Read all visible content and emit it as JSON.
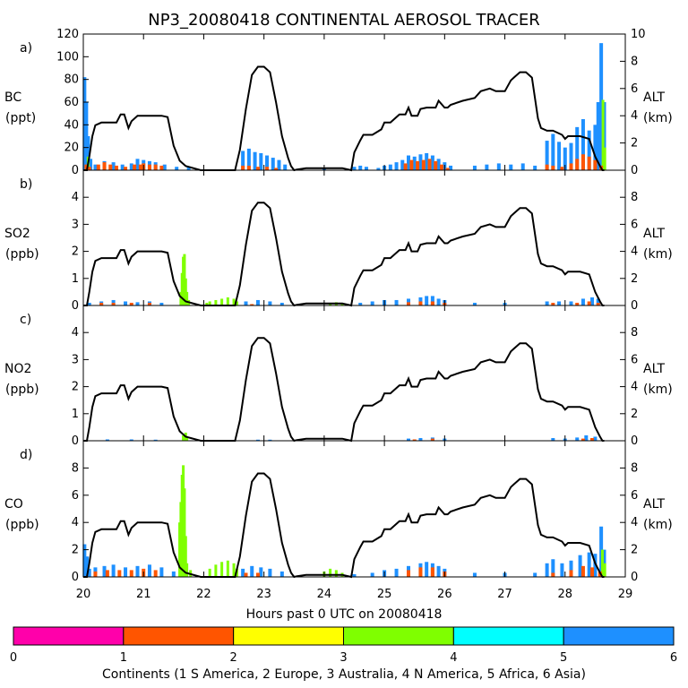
{
  "title": "NP3_20080418 CONTINENTAL AEROSOL TRACER",
  "xlabel": "Hours past 0 UTC on 20080418",
  "x_ticks": [
    "20",
    "21",
    "22",
    "23",
    "24",
    "25",
    "26",
    "27",
    "28",
    "29"
  ],
  "xlim": [
    20,
    29
  ],
  "colors": {
    "europe": "#ff5500",
    "australia": "#ffff00",
    "n_america": "#7fff00",
    "africa": "#00ffff",
    "asia": "#1e90ff",
    "s_america": "#ff00aa"
  },
  "alt_axis": {
    "label": "ALT",
    "unit": "(km)",
    "range": [
      0,
      10
    ]
  },
  "colorbar": {
    "label": "Continents (1 S America, 2 Europe, 3 Australia, 4 N America, 5 Africa, 6 Asia)",
    "ticks": [
      "0",
      "1",
      "2",
      "3",
      "4",
      "5",
      "6"
    ],
    "segments": [
      "#ff00aa",
      "#ff5500",
      "#ffff00",
      "#7fff00",
      "#00ffff",
      "#1e90ff"
    ]
  },
  "altitude": {
    "t": [
      20.0,
      20.06,
      20.1,
      20.15,
      20.2,
      20.3,
      20.55,
      20.62,
      20.68,
      20.75,
      20.8,
      20.9,
      21.3,
      21.4,
      21.5,
      21.6,
      21.7,
      21.95,
      22.52,
      22.6,
      22.7,
      22.8,
      22.9,
      23.0,
      23.1,
      23.2,
      23.3,
      23.4,
      23.45,
      23.5,
      23.55,
      23.7,
      24.0,
      24.3,
      24.45,
      24.5,
      24.6,
      24.65,
      24.8,
      24.95,
      25.0,
      25.1,
      25.25,
      25.35,
      25.4,
      25.45,
      25.55,
      25.6,
      25.7,
      25.85,
      25.9,
      26.0,
      26.05,
      26.1,
      26.3,
      26.5,
      26.6,
      26.75,
      26.85,
      27.0,
      27.1,
      27.15,
      27.25,
      27.35,
      27.45,
      27.55,
      27.6,
      27.7,
      27.8,
      27.95,
      28.0,
      28.05,
      28.15,
      28.25,
      28.4,
      28.5,
      28.58,
      28.62,
      28.65
    ],
    "alt": [
      0.0,
      0.0,
      1.0,
      2.5,
      3.3,
      3.5,
      3.5,
      4.1,
      4.1,
      3.1,
      3.6,
      4.0,
      4.0,
      3.9,
      1.8,
      0.7,
      0.3,
      0.0,
      0.0,
      1.5,
      4.5,
      7.0,
      7.6,
      7.6,
      7.2,
      5.0,
      2.5,
      0.9,
      0.3,
      0.0,
      0.05,
      0.15,
      0.15,
      0.15,
      0.0,
      1.3,
      2.2,
      2.6,
      2.6,
      3.0,
      3.5,
      3.5,
      4.1,
      4.1,
      4.6,
      4.0,
      4.0,
      4.5,
      4.6,
      4.6,
      5.1,
      4.6,
      4.6,
      4.8,
      5.1,
      5.3,
      5.8,
      6.0,
      5.8,
      5.8,
      6.6,
      6.8,
      7.2,
      7.2,
      6.8,
      3.8,
      3.1,
      2.9,
      2.9,
      2.6,
      2.3,
      2.5,
      2.5,
      2.5,
      2.3,
      1.0,
      0.3,
      0.0,
      0.0
    ]
  },
  "panels": [
    {
      "letter": "a)",
      "species": "BC",
      "unit": "(ppt)",
      "y_ticks": [
        "0",
        "20",
        "40",
        "60",
        "80",
        "100",
        "120"
      ],
      "ymax": 120,
      "alt_ticks": [
        "0",
        "2",
        "4",
        "6",
        "8",
        "10"
      ],
      "orange": [
        [
          20.05,
          5
        ],
        [
          20.1,
          3
        ],
        [
          20.25,
          5
        ],
        [
          20.35,
          7
        ],
        [
          20.45,
          5
        ],
        [
          20.55,
          4
        ],
        [
          20.7,
          3
        ],
        [
          20.85,
          5
        ],
        [
          20.95,
          5
        ],
        [
          21.0,
          6
        ],
        [
          21.1,
          5
        ],
        [
          21.2,
          5
        ],
        [
          21.3,
          4
        ],
        [
          22.65,
          4
        ],
        [
          22.75,
          4
        ],
        [
          22.9,
          3
        ],
        [
          23.05,
          3
        ],
        [
          23.2,
          2
        ],
        [
          25.35,
          6
        ],
        [
          25.45,
          9
        ],
        [
          25.55,
          8
        ],
        [
          25.65,
          9
        ],
        [
          25.75,
          10
        ],
        [
          25.85,
          8
        ],
        [
          25.95,
          5
        ],
        [
          26.05,
          2
        ],
        [
          27.7,
          5
        ],
        [
          27.8,
          4
        ],
        [
          27.95,
          3
        ],
        [
          28.1,
          6
        ],
        [
          28.2,
          10
        ],
        [
          28.3,
          14
        ],
        [
          28.4,
          12
        ],
        [
          28.5,
          9
        ],
        [
          28.6,
          4
        ]
      ],
      "asia": [
        [
          20.02,
          82
        ],
        [
          20.05,
          60
        ],
        [
          20.08,
          30
        ],
        [
          20.12,
          10
        ],
        [
          20.2,
          5
        ],
        [
          20.35,
          8
        ],
        [
          20.5,
          7
        ],
        [
          20.65,
          5
        ],
        [
          20.8,
          6
        ],
        [
          20.9,
          10
        ],
        [
          21.0,
          9
        ],
        [
          21.1,
          8
        ],
        [
          21.2,
          7
        ],
        [
          21.35,
          5
        ],
        [
          21.55,
          3
        ],
        [
          21.75,
          3
        ],
        [
          22.65,
          17
        ],
        [
          22.75,
          19
        ],
        [
          22.85,
          16
        ],
        [
          22.95,
          15
        ],
        [
          23.05,
          13
        ],
        [
          23.15,
          11
        ],
        [
          23.25,
          9
        ],
        [
          23.35,
          5
        ],
        [
          24.0,
          2
        ],
        [
          24.5,
          3
        ],
        [
          24.6,
          4
        ],
        [
          24.7,
          3
        ],
        [
          24.9,
          2
        ],
        [
          25.0,
          4
        ],
        [
          25.1,
          5
        ],
        [
          25.2,
          7
        ],
        [
          25.3,
          9
        ],
        [
          25.4,
          13
        ],
        [
          25.5,
          12
        ],
        [
          25.6,
          14
        ],
        [
          25.7,
          15
        ],
        [
          25.8,
          13
        ],
        [
          25.9,
          10
        ],
        [
          26.0,
          7
        ],
        [
          26.1,
          4
        ],
        [
          26.5,
          4
        ],
        [
          26.7,
          5
        ],
        [
          26.9,
          6
        ],
        [
          27.1,
          5
        ],
        [
          27.3,
          6
        ],
        [
          27.5,
          4
        ],
        [
          27.7,
          26
        ],
        [
          27.8,
          32
        ],
        [
          27.9,
          25
        ],
        [
          28.0,
          20
        ],
        [
          28.1,
          24
        ],
        [
          28.2,
          38
        ],
        [
          28.3,
          45
        ],
        [
          28.4,
          35
        ],
        [
          28.5,
          40
        ],
        [
          28.55,
          60
        ],
        [
          28.6,
          112
        ],
        [
          28.65,
          60
        ]
      ],
      "green": [
        [
          20.08,
          12
        ],
        [
          28.63,
          62
        ],
        [
          28.66,
          20
        ]
      ]
    },
    {
      "letter": "b)",
      "species": "SO2",
      "unit": "(ppb)",
      "y_ticks": [
        "0",
        "1",
        "2",
        "3",
        "4"
      ],
      "ymax": 5,
      "alt_ticks": [
        "0",
        "2",
        "4",
        "6",
        "8"
      ],
      "orange": [
        [
          20.3,
          0.1
        ],
        [
          20.5,
          0.1
        ],
        [
          20.8,
          0.1
        ],
        [
          21.1,
          0.1
        ],
        [
          22.8,
          0.05
        ],
        [
          25.4,
          0.12
        ],
        [
          25.6,
          0.15
        ],
        [
          25.8,
          0.15
        ],
        [
          26.0,
          0.1
        ],
        [
          27.8,
          0.1
        ],
        [
          28.2,
          0.1
        ],
        [
          28.4,
          0.15
        ],
        [
          28.55,
          0.1
        ]
      ],
      "asia": [
        [
          20.1,
          0.1
        ],
        [
          20.3,
          0.15
        ],
        [
          20.5,
          0.2
        ],
        [
          20.7,
          0.15
        ],
        [
          20.9,
          0.12
        ],
        [
          21.1,
          0.15
        ],
        [
          21.3,
          0.1
        ],
        [
          22.7,
          0.15
        ],
        [
          22.9,
          0.2
        ],
        [
          23.1,
          0.15
        ],
        [
          23.3,
          0.1
        ],
        [
          24.6,
          0.1
        ],
        [
          24.8,
          0.15
        ],
        [
          25.0,
          0.2
        ],
        [
          25.2,
          0.2
        ],
        [
          25.4,
          0.25
        ],
        [
          25.6,
          0.3
        ],
        [
          25.7,
          0.35
        ],
        [
          25.8,
          0.35
        ],
        [
          25.9,
          0.25
        ],
        [
          26.0,
          0.2
        ],
        [
          26.5,
          0.1
        ],
        [
          27.0,
          0.1
        ],
        [
          27.7,
          0.15
        ],
        [
          27.9,
          0.15
        ],
        [
          28.1,
          0.15
        ],
        [
          28.3,
          0.25
        ],
        [
          28.45,
          0.3
        ],
        [
          28.55,
          0.25
        ]
      ],
      "green": [
        [
          21.62,
          0.5
        ],
        [
          21.64,
          1.2
        ],
        [
          21.66,
          1.8
        ],
        [
          21.68,
          1.9
        ],
        [
          21.7,
          1.0
        ],
        [
          21.72,
          0.5
        ],
        [
          21.75,
          0.2
        ],
        [
          22.05,
          0.1
        ],
        [
          22.1,
          0.15
        ],
        [
          22.2,
          0.2
        ],
        [
          22.3,
          0.25
        ],
        [
          22.4,
          0.3
        ],
        [
          22.5,
          0.25
        ],
        [
          22.55,
          0.15
        ],
        [
          24.1,
          0.1
        ],
        [
          24.2,
          0.12
        ],
        [
          24.3,
          0.08
        ]
      ]
    },
    {
      "letter": "c)",
      "species": "NO2",
      "unit": "(ppb)",
      "y_ticks": [
        "0",
        "1",
        "2",
        "3",
        "4"
      ],
      "ymax": 5,
      "alt_ticks": [
        "0",
        "2",
        "4",
        "6",
        "8"
      ],
      "orange": [
        [
          25.5,
          0.05
        ],
        [
          25.8,
          0.08
        ],
        [
          28.3,
          0.08
        ],
        [
          28.45,
          0.1
        ]
      ],
      "asia": [
        [
          20.4,
          0.05
        ],
        [
          20.8,
          0.05
        ],
        [
          21.2,
          0.04
        ],
        [
          22.9,
          0.04
        ],
        [
          23.1,
          0.04
        ],
        [
          25.4,
          0.08
        ],
        [
          25.6,
          0.1
        ],
        [
          25.8,
          0.12
        ],
        [
          26.0,
          0.08
        ],
        [
          27.8,
          0.1
        ],
        [
          28.0,
          0.08
        ],
        [
          28.2,
          0.12
        ],
        [
          28.35,
          0.2
        ],
        [
          28.5,
          0.15
        ]
      ],
      "green": [
        [
          21.66,
          0.2
        ],
        [
          21.7,
          0.3
        ],
        [
          21.72,
          0.1
        ]
      ]
    },
    {
      "letter": "d)",
      "species": "CO",
      "unit": "(ppb)",
      "y_ticks": [
        "0",
        "2",
        "4",
        "6",
        "8"
      ],
      "ymax": 10,
      "alt_ticks": [
        "0",
        "2",
        "4",
        "6",
        "8"
      ],
      "orange": [
        [
          20.2,
          0.4
        ],
        [
          20.4,
          0.5
        ],
        [
          20.6,
          0.5
        ],
        [
          20.8,
          0.5
        ],
        [
          21.0,
          0.6
        ],
        [
          21.2,
          0.5
        ],
        [
          22.7,
          0.3
        ],
        [
          22.9,
          0.3
        ],
        [
          25.4,
          0.5
        ],
        [
          25.6,
          0.7
        ],
        [
          25.8,
          0.7
        ],
        [
          26.0,
          0.4
        ],
        [
          27.8,
          0.3
        ],
        [
          28.1,
          0.5
        ],
        [
          28.3,
          0.8
        ],
        [
          28.45,
          0.7
        ],
        [
          28.58,
          0.4
        ]
      ],
      "asia": [
        [
          20.02,
          2.4
        ],
        [
          20.06,
          1.5
        ],
        [
          20.1,
          0.6
        ],
        [
          20.2,
          0.7
        ],
        [
          20.35,
          0.8
        ],
        [
          20.5,
          0.9
        ],
        [
          20.7,
          0.7
        ],
        [
          20.9,
          0.8
        ],
        [
          21.1,
          0.9
        ],
        [
          21.3,
          0.7
        ],
        [
          21.5,
          0.4
        ],
        [
          22.65,
          0.6
        ],
        [
          22.8,
          0.8
        ],
        [
          22.95,
          0.7
        ],
        [
          23.1,
          0.6
        ],
        [
          23.3,
          0.4
        ],
        [
          24.5,
          0.2
        ],
        [
          24.8,
          0.3
        ],
        [
          25.0,
          0.5
        ],
        [
          25.2,
          0.6
        ],
        [
          25.4,
          0.8
        ],
        [
          25.6,
          1.0
        ],
        [
          25.7,
          1.1
        ],
        [
          25.8,
          1.0
        ],
        [
          25.9,
          0.8
        ],
        [
          26.0,
          0.6
        ],
        [
          26.5,
          0.3
        ],
        [
          27.0,
          0.3
        ],
        [
          27.5,
          0.3
        ],
        [
          27.7,
          1.0
        ],
        [
          27.8,
          1.3
        ],
        [
          27.95,
          1.0
        ],
        [
          28.1,
          1.2
        ],
        [
          28.25,
          1.6
        ],
        [
          28.4,
          1.8
        ],
        [
          28.5,
          1.7
        ],
        [
          28.6,
          3.7
        ],
        [
          28.65,
          2.0
        ]
      ],
      "green": [
        [
          21.6,
          4.0
        ],
        [
          21.62,
          5.5
        ],
        [
          21.64,
          7.5
        ],
        [
          21.66,
          8.2
        ],
        [
          21.68,
          6.5
        ],
        [
          21.7,
          3.0
        ],
        [
          21.72,
          1.0
        ],
        [
          21.78,
          0.5
        ],
        [
          22.1,
          0.6
        ],
        [
          22.2,
          0.9
        ],
        [
          22.3,
          1.1
        ],
        [
          22.4,
          1.2
        ],
        [
          22.5,
          1.0
        ],
        [
          22.55,
          0.6
        ],
        [
          24.0,
          0.4
        ],
        [
          24.1,
          0.6
        ],
        [
          24.2,
          0.5
        ],
        [
          24.3,
          0.3
        ],
        [
          28.62,
          2.0
        ],
        [
          28.66,
          1.0
        ]
      ]
    }
  ]
}
